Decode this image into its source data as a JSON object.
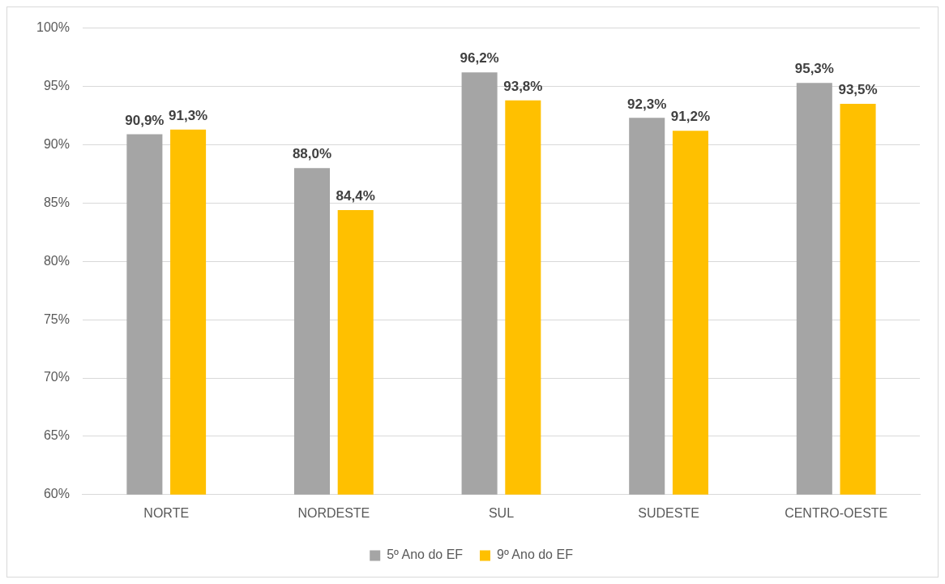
{
  "chart_data": {
    "type": "bar",
    "categories": [
      "NORTE",
      "NORDESTE",
      "SUL",
      "SUDESTE",
      "CENTRO-OESTE"
    ],
    "series": [
      {
        "name": "5º Ano do EF",
        "color": "#a5a5a5",
        "values": [
          90.9,
          88.0,
          96.2,
          92.3,
          95.3
        ],
        "value_labels": [
          "90,9%",
          "88,0%",
          "96,2%",
          "92,3%",
          "95,3%"
        ]
      },
      {
        "name": "9º Ano do EF",
        "color": "#ffc000",
        "values": [
          91.3,
          84.4,
          93.8,
          91.2,
          93.5
        ],
        "value_labels": [
          "91,3%",
          "84,4%",
          "93,8%",
          "91,2%",
          "93,5%"
        ]
      }
    ],
    "ylim": [
      60,
      100
    ],
    "yticks": [
      {
        "value": 60,
        "label": "60%"
      },
      {
        "value": 65,
        "label": "65%"
      },
      {
        "value": 70,
        "label": "70%"
      },
      {
        "value": 75,
        "label": "75%"
      },
      {
        "value": 80,
        "label": "80%"
      },
      {
        "value": 85,
        "label": "85%"
      },
      {
        "value": 90,
        "label": "90%"
      },
      {
        "value": 95,
        "label": "95%"
      },
      {
        "value": 100,
        "label": "100%"
      }
    ],
    "grid": "y",
    "legend": "bottom"
  }
}
